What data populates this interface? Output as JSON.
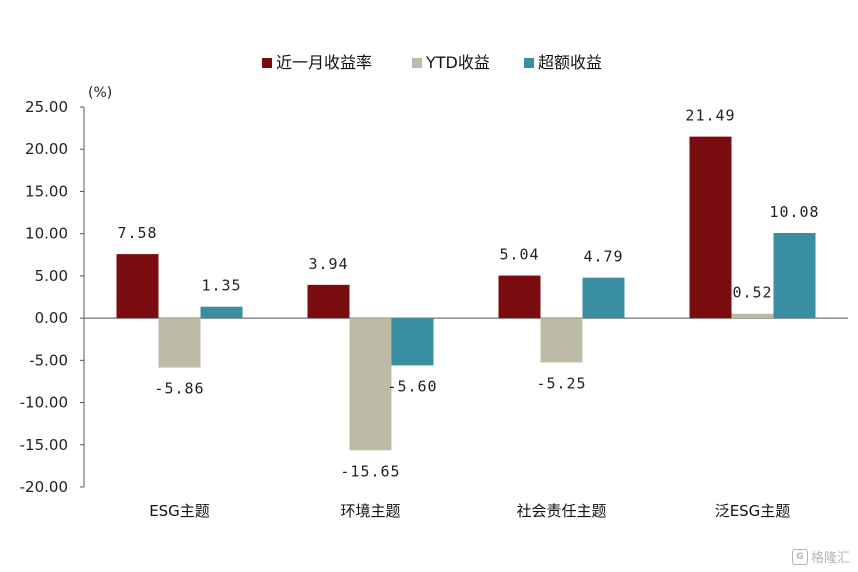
{
  "chart_data": {
    "type": "bar",
    "unit_label": "(%)",
    "categories": [
      "ESG主题",
      "环境主题",
      "社会责任主题",
      "泛ESG主题"
    ],
    "series": [
      {
        "name": "近一月收益率",
        "color": "#7a0c10",
        "values": [
          7.58,
          3.94,
          5.04,
          21.49
        ],
        "labels": [
          "7.58",
          "3.94",
          "5.04",
          "21.49"
        ]
      },
      {
        "name": "YTD收益",
        "color": "#bdbba6",
        "values": [
          -5.86,
          -15.65,
          -5.25,
          0.52
        ],
        "labels": [
          "-5.86",
          "-15.65",
          "-5.25",
          "0.52"
        ]
      },
      {
        "name": "超额收益",
        "color": "#3a8ea1",
        "values": [
          1.35,
          -5.6,
          4.79,
          10.08
        ],
        "labels": [
          "1.35",
          "-5.60",
          "4.79",
          "10.08"
        ]
      }
    ],
    "yticks": [
      "25.00",
      "20.00",
      "15.00",
      "10.00",
      "5.00",
      "0.00",
      "-5.00",
      "-10.00",
      "-15.00",
      "-20.00"
    ],
    "ylim": [
      -20,
      25
    ],
    "legend_position": "top-center",
    "grid": false
  },
  "watermark": {
    "logo": "G",
    "text": "格隆汇"
  }
}
